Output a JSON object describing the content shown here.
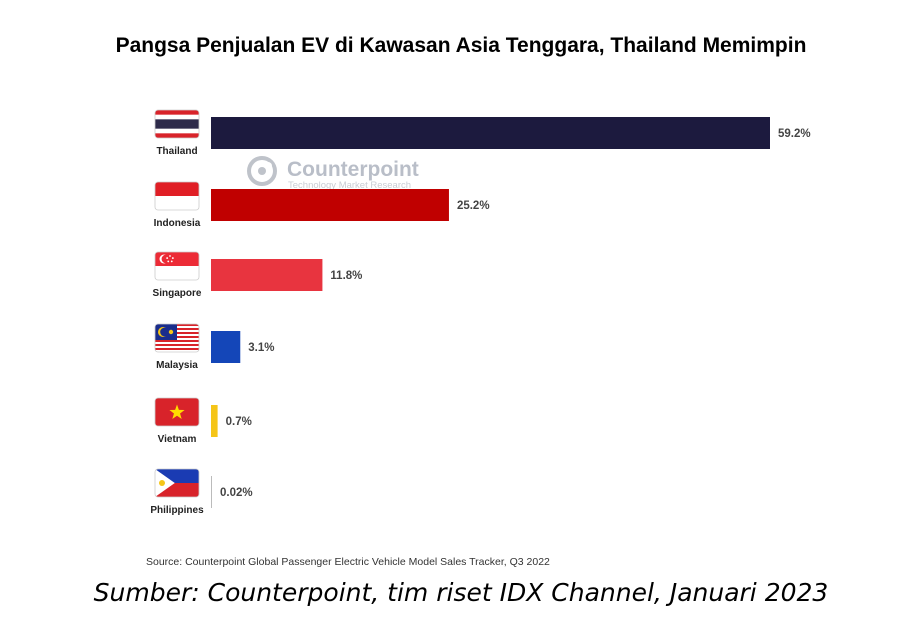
{
  "title": "Pangsa Penjualan EV di Kawasan Asia Tenggara, Thailand Memimpin",
  "watermark": {
    "name": "Counterpoint",
    "subtitle": "Technology Market Research"
  },
  "source": "Source: Counterpoint Global Passenger Electric Vehicle Model Sales Tracker, Q3 2022",
  "credit": "Sumber: Counterpoint, tim riset IDX Channel, Januari 2023",
  "chart_data": {
    "type": "bar",
    "orientation": "horizontal",
    "title": "Pangsa Penjualan EV di Kawasan Asia Tenggara, Thailand Memimpin",
    "xlabel": "",
    "ylabel": "",
    "grid": false,
    "legend": "none",
    "xlim": [
      0,
      59.2
    ],
    "categories": [
      "Thailand",
      "Indonesia",
      "Singapore",
      "Malaysia",
      "Vietnam",
      "Philippines"
    ],
    "values": [
      59.2,
      25.2,
      11.8,
      3.1,
      0.7,
      0.02
    ],
    "value_labels": [
      "59.2%",
      "25.2%",
      "11.8%",
      "3.1%",
      "0.7%",
      "0.02%"
    ],
    "colors": [
      "#1c1a3e",
      "#c00000",
      "#e8343f",
      "#1446b8",
      "#f5c518",
      "#bbbbbb"
    ],
    "flags": [
      "thailand-flag",
      "indonesia-flag",
      "singapore-flag",
      "malaysia-flag",
      "vietnam-flag",
      "philippines-flag"
    ]
  }
}
